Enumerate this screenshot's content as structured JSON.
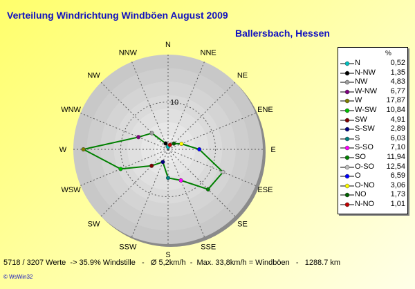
{
  "title": "Verteilung Windrichtung Windböen  August 2009",
  "subtitle": "Ballersbach, Hessen",
  "footer": "5718 / 3207 Werte  -> 35.9% Windstille   -   Ø 5,2km/h  -  Max. 33,8km/h = Windböen   -   1288.7 km",
  "copyright": "© WsWin32",
  "chart_data": {
    "type": "radar",
    "title": "Verteilung Windrichtung Windböen  August 2009",
    "subtitle": "Ballersbach, Hessen",
    "unit": "%",
    "radial_max": 20,
    "radial_labels": [
      {
        "value": 10,
        "text": "10"
      }
    ],
    "directions": [
      "N",
      "NNE",
      "NE",
      "ENE",
      "E",
      "ESE",
      "SE",
      "SSE",
      "S",
      "SSW",
      "SW",
      "WSW",
      "W",
      "WNW",
      "NW",
      "NNW"
    ],
    "series_color": "#008000",
    "legend": [
      {
        "name": "N",
        "value": "0,52",
        "color": "#00c0c0"
      },
      {
        "name": "N-NW",
        "value": "1,35",
        "color": "#000000"
      },
      {
        "name": "NW",
        "value": "4,83",
        "color": "#a0a0a0"
      },
      {
        "name": "W-NW",
        "value": "6,77",
        "color": "#800080"
      },
      {
        "name": "W",
        "value": "17,87",
        "color": "#808000"
      },
      {
        "name": "W-SW",
        "value": "10,84",
        "color": "#00c000"
      },
      {
        "name": "SW",
        "value": "4,91",
        "color": "#800000"
      },
      {
        "name": "S-SW",
        "value": "2,89",
        "color": "#000080"
      },
      {
        "name": "S",
        "value": "6,03",
        "color": "#008080"
      },
      {
        "name": "S-SO",
        "value": "7,10",
        "color": "#ff00ff"
      },
      {
        "name": "SO",
        "value": "11,94",
        "color": "#008000"
      },
      {
        "name": "O-SO",
        "value": "12,54",
        "color": "#c0c0c0"
      },
      {
        "name": "O",
        "value": "6,59",
        "color": "#0000ff"
      },
      {
        "name": "O-NO",
        "value": "3,06",
        "color": "#ffff00"
      },
      {
        "name": "NO",
        "value": "1,73",
        "color": "#006000"
      },
      {
        "name": "N-NO",
        "value": "1,01",
        "color": "#c00000"
      }
    ],
    "points": [
      {
        "direction": "N",
        "value": 0.52,
        "color": "#00c0c0"
      },
      {
        "direction": "NNE",
        "value": 1.01,
        "color": "#c00000"
      },
      {
        "direction": "NE",
        "value": 1.73,
        "color": "#006000"
      },
      {
        "direction": "ENE",
        "value": 3.06,
        "color": "#ffff00"
      },
      {
        "direction": "E",
        "value": 6.59,
        "color": "#0000ff"
      },
      {
        "direction": "ESE",
        "value": 12.54,
        "color": "#c0c0c0"
      },
      {
        "direction": "SE",
        "value": 11.94,
        "color": "#008000"
      },
      {
        "direction": "SSE",
        "value": 7.1,
        "color": "#ff00ff"
      },
      {
        "direction": "S",
        "value": 6.03,
        "color": "#008080"
      },
      {
        "direction": "SSW",
        "value": 2.89,
        "color": "#000080"
      },
      {
        "direction": "SW",
        "value": 4.91,
        "color": "#800000"
      },
      {
        "direction": "WSW",
        "value": 10.84,
        "color": "#00c000"
      },
      {
        "direction": "W",
        "value": 17.87,
        "color": "#808000"
      },
      {
        "direction": "WNW",
        "value": 6.77,
        "color": "#800080"
      },
      {
        "direction": "NW",
        "value": 4.83,
        "color": "#a0a0a0"
      },
      {
        "direction": "NNW",
        "value": 1.35,
        "color": "#000000"
      }
    ]
  }
}
